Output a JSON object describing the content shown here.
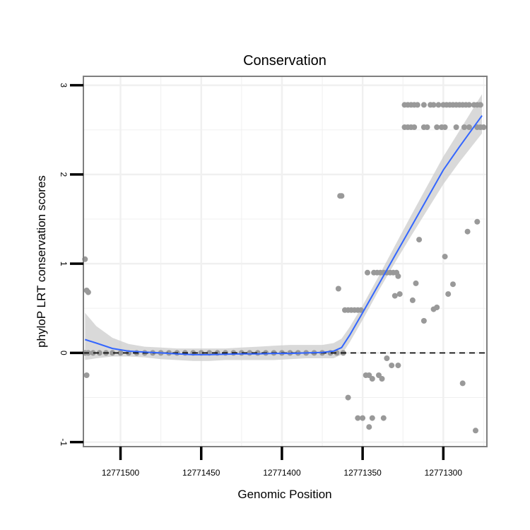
{
  "chart_data": {
    "type": "scatter",
    "title": "Conservation",
    "xlabel": "Genomic Position",
    "ylabel": "phyloP LRT conservation scores",
    "x_reversed": true,
    "xlim": [
      12771523,
      12771273
    ],
    "ylim": [
      -1.05,
      3.1
    ],
    "x_ticks": [
      12771500,
      12771450,
      12771400,
      12771350,
      12771300
    ],
    "x_tick_labels": [
      "12771500",
      "12771450",
      "12771400",
      "12771350",
      "12771300"
    ],
    "y_ticks": [
      -1,
      0,
      1,
      2,
      3
    ],
    "y_tick_labels": [
      "-1",
      "0",
      "1",
      "2",
      "3"
    ],
    "reference_line": {
      "y": 0,
      "style": "dashed"
    },
    "grid": true,
    "colors": {
      "points": "#999999",
      "smooth_line": "#3366ff",
      "confidence_band": "#cccccc",
      "panel_border": "#7f7f7f",
      "grid": "#f0f0f0"
    },
    "points": [
      [
        12771522,
        1.05
      ],
      [
        12771521,
        0.7
      ],
      [
        12771520,
        0.68
      ],
      [
        12771521,
        -0.25
      ],
      [
        12771522,
        0.0
      ],
      [
        12771520,
        0.0
      ],
      [
        12771517,
        0.0
      ],
      [
        12771513,
        0.0
      ],
      [
        12771509,
        0.0
      ],
      [
        12771505,
        0.0
      ],
      [
        12771500,
        0.0
      ],
      [
        12771495,
        0.0
      ],
      [
        12771490,
        0.0
      ],
      [
        12771485,
        0.0
      ],
      [
        12771480,
        0.0
      ],
      [
        12771475,
        0.0
      ],
      [
        12771470,
        0.0
      ],
      [
        12771465,
        0.0
      ],
      [
        12771460,
        0.0
      ],
      [
        12771455,
        0.0
      ],
      [
        12771450,
        0.0
      ],
      [
        12771445,
        0.0
      ],
      [
        12771440,
        0.0
      ],
      [
        12771435,
        0.0
      ],
      [
        12771430,
        0.0
      ],
      [
        12771425,
        0.0
      ],
      [
        12771420,
        0.0
      ],
      [
        12771415,
        0.0
      ],
      [
        12771410,
        0.0
      ],
      [
        12771405,
        0.0
      ],
      [
        12771400,
        0.0
      ],
      [
        12771395,
        0.0
      ],
      [
        12771390,
        0.0
      ],
      [
        12771385,
        0.0
      ],
      [
        12771380,
        0.0
      ],
      [
        12771375,
        0.0
      ],
      [
        12771370,
        0.0
      ],
      [
        12771366,
        0.0
      ],
      [
        12771362,
        0.0
      ],
      [
        12771364,
        1.76
      ],
      [
        12771363,
        1.76
      ],
      [
        12771365,
        0.72
      ],
      [
        12771361,
        0.48
      ],
      [
        12771359,
        0.48
      ],
      [
        12771357,
        0.48
      ],
      [
        12771355,
        0.48
      ],
      [
        12771353,
        0.48
      ],
      [
        12771351,
        0.48
      ],
      [
        12771359,
        -0.5
      ],
      [
        12771353,
        -0.73
      ],
      [
        12771350,
        -0.73
      ],
      [
        12771348,
        -0.25
      ],
      [
        12771346,
        -0.25
      ],
      [
        12771346,
        -0.83
      ],
      [
        12771344,
        -0.29
      ],
      [
        12771344,
        -0.73
      ],
      [
        12771347,
        0.9
      ],
      [
        12771343,
        0.9
      ],
      [
        12771341,
        0.9
      ],
      [
        12771339,
        0.9
      ],
      [
        12771337,
        0.9
      ],
      [
        12771335,
        0.9
      ],
      [
        12771333,
        0.9
      ],
      [
        12771331,
        0.9
      ],
      [
        12771329,
        0.9
      ],
      [
        12771340,
        -0.25
      ],
      [
        12771337,
        -0.73
      ],
      [
        12771338,
        -0.29
      ],
      [
        12771335,
        -0.06
      ],
      [
        12771332,
        -0.14
      ],
      [
        12771328,
        -0.14
      ],
      [
        12771330,
        0.64
      ],
      [
        12771328,
        0.86
      ],
      [
        12771327,
        0.66
      ],
      [
        12771324,
        2.78
      ],
      [
        12771322,
        2.78
      ],
      [
        12771320,
        2.78
      ],
      [
        12771318,
        2.78
      ],
      [
        12771316,
        2.78
      ],
      [
        12771312,
        2.78
      ],
      [
        12771308,
        2.78
      ],
      [
        12771306,
        2.78
      ],
      [
        12771303,
        2.78
      ],
      [
        12771300,
        2.78
      ],
      [
        12771298,
        2.78
      ],
      [
        12771296,
        2.78
      ],
      [
        12771294,
        2.78
      ],
      [
        12771292,
        2.78
      ],
      [
        12771290,
        2.78
      ],
      [
        12771288,
        2.78
      ],
      [
        12771286,
        2.78
      ],
      [
        12771284,
        2.78
      ],
      [
        12771281,
        2.78
      ],
      [
        12771279,
        2.78
      ],
      [
        12771277,
        2.78
      ],
      [
        12771324,
        2.53
      ],
      [
        12771322,
        2.53
      ],
      [
        12771320,
        2.53
      ],
      [
        12771318,
        2.53
      ],
      [
        12771312,
        2.53
      ],
      [
        12771310,
        2.53
      ],
      [
        12771304,
        2.53
      ],
      [
        12771301,
        2.53
      ],
      [
        12771299,
        2.53
      ],
      [
        12771292,
        2.53
      ],
      [
        12771287,
        2.53
      ],
      [
        12771284,
        2.53
      ],
      [
        12771279,
        2.53
      ],
      [
        12771277,
        2.53
      ],
      [
        12771275,
        2.53
      ],
      [
        12771315,
        1.27
      ],
      [
        12771319,
        0.59
      ],
      [
        12771317,
        0.78
      ],
      [
        12771312,
        0.36
      ],
      [
        12771306,
        0.49
      ],
      [
        12771304,
        0.51
      ],
      [
        12771299,
        1.08
      ],
      [
        12771297,
        0.66
      ],
      [
        12771294,
        0.77
      ],
      [
        12771288,
        -0.34
      ],
      [
        12771285,
        1.36
      ],
      [
        12771280,
        -0.87
      ],
      [
        12771279,
        1.47
      ]
    ],
    "smooth_line": {
      "x": [
        12771522,
        12771515,
        12771505,
        12771495,
        12771485,
        12771475,
        12771465,
        12771455,
        12771445,
        12771435,
        12771425,
        12771415,
        12771405,
        12771395,
        12771385,
        12771375,
        12771368,
        12771363,
        12771358,
        12771350,
        12771340,
        12771330,
        12771320,
        12771310,
        12771300,
        12771290,
        12771276
      ],
      "y": [
        0.15,
        0.11,
        0.05,
        0.02,
        0.01,
        0.0,
        -0.01,
        -0.02,
        -0.02,
        -0.015,
        -0.01,
        -0.01,
        -0.005,
        -0.005,
        0.0,
        0.005,
        0.02,
        0.06,
        0.2,
        0.45,
        0.77,
        1.09,
        1.41,
        1.73,
        2.05,
        2.31,
        2.66
      ],
      "lower": [
        -0.08,
        -0.06,
        -0.04,
        -0.04,
        -0.05,
        -0.07,
        -0.08,
        -0.09,
        -0.09,
        -0.08,
        -0.08,
        -0.08,
        -0.08,
        -0.07,
        -0.06,
        -0.06,
        -0.06,
        -0.02,
        0.12,
        0.37,
        0.7,
        1.01,
        1.31,
        1.6,
        1.89,
        2.14,
        2.46
      ],
      "upper": [
        0.45,
        0.3,
        0.17,
        0.1,
        0.07,
        0.06,
        0.05,
        0.05,
        0.05,
        0.05,
        0.06,
        0.07,
        0.08,
        0.09,
        0.09,
        0.09,
        0.11,
        0.16,
        0.29,
        0.53,
        0.86,
        1.2,
        1.54,
        1.87,
        2.2,
        2.49,
        2.9
      ]
    }
  }
}
